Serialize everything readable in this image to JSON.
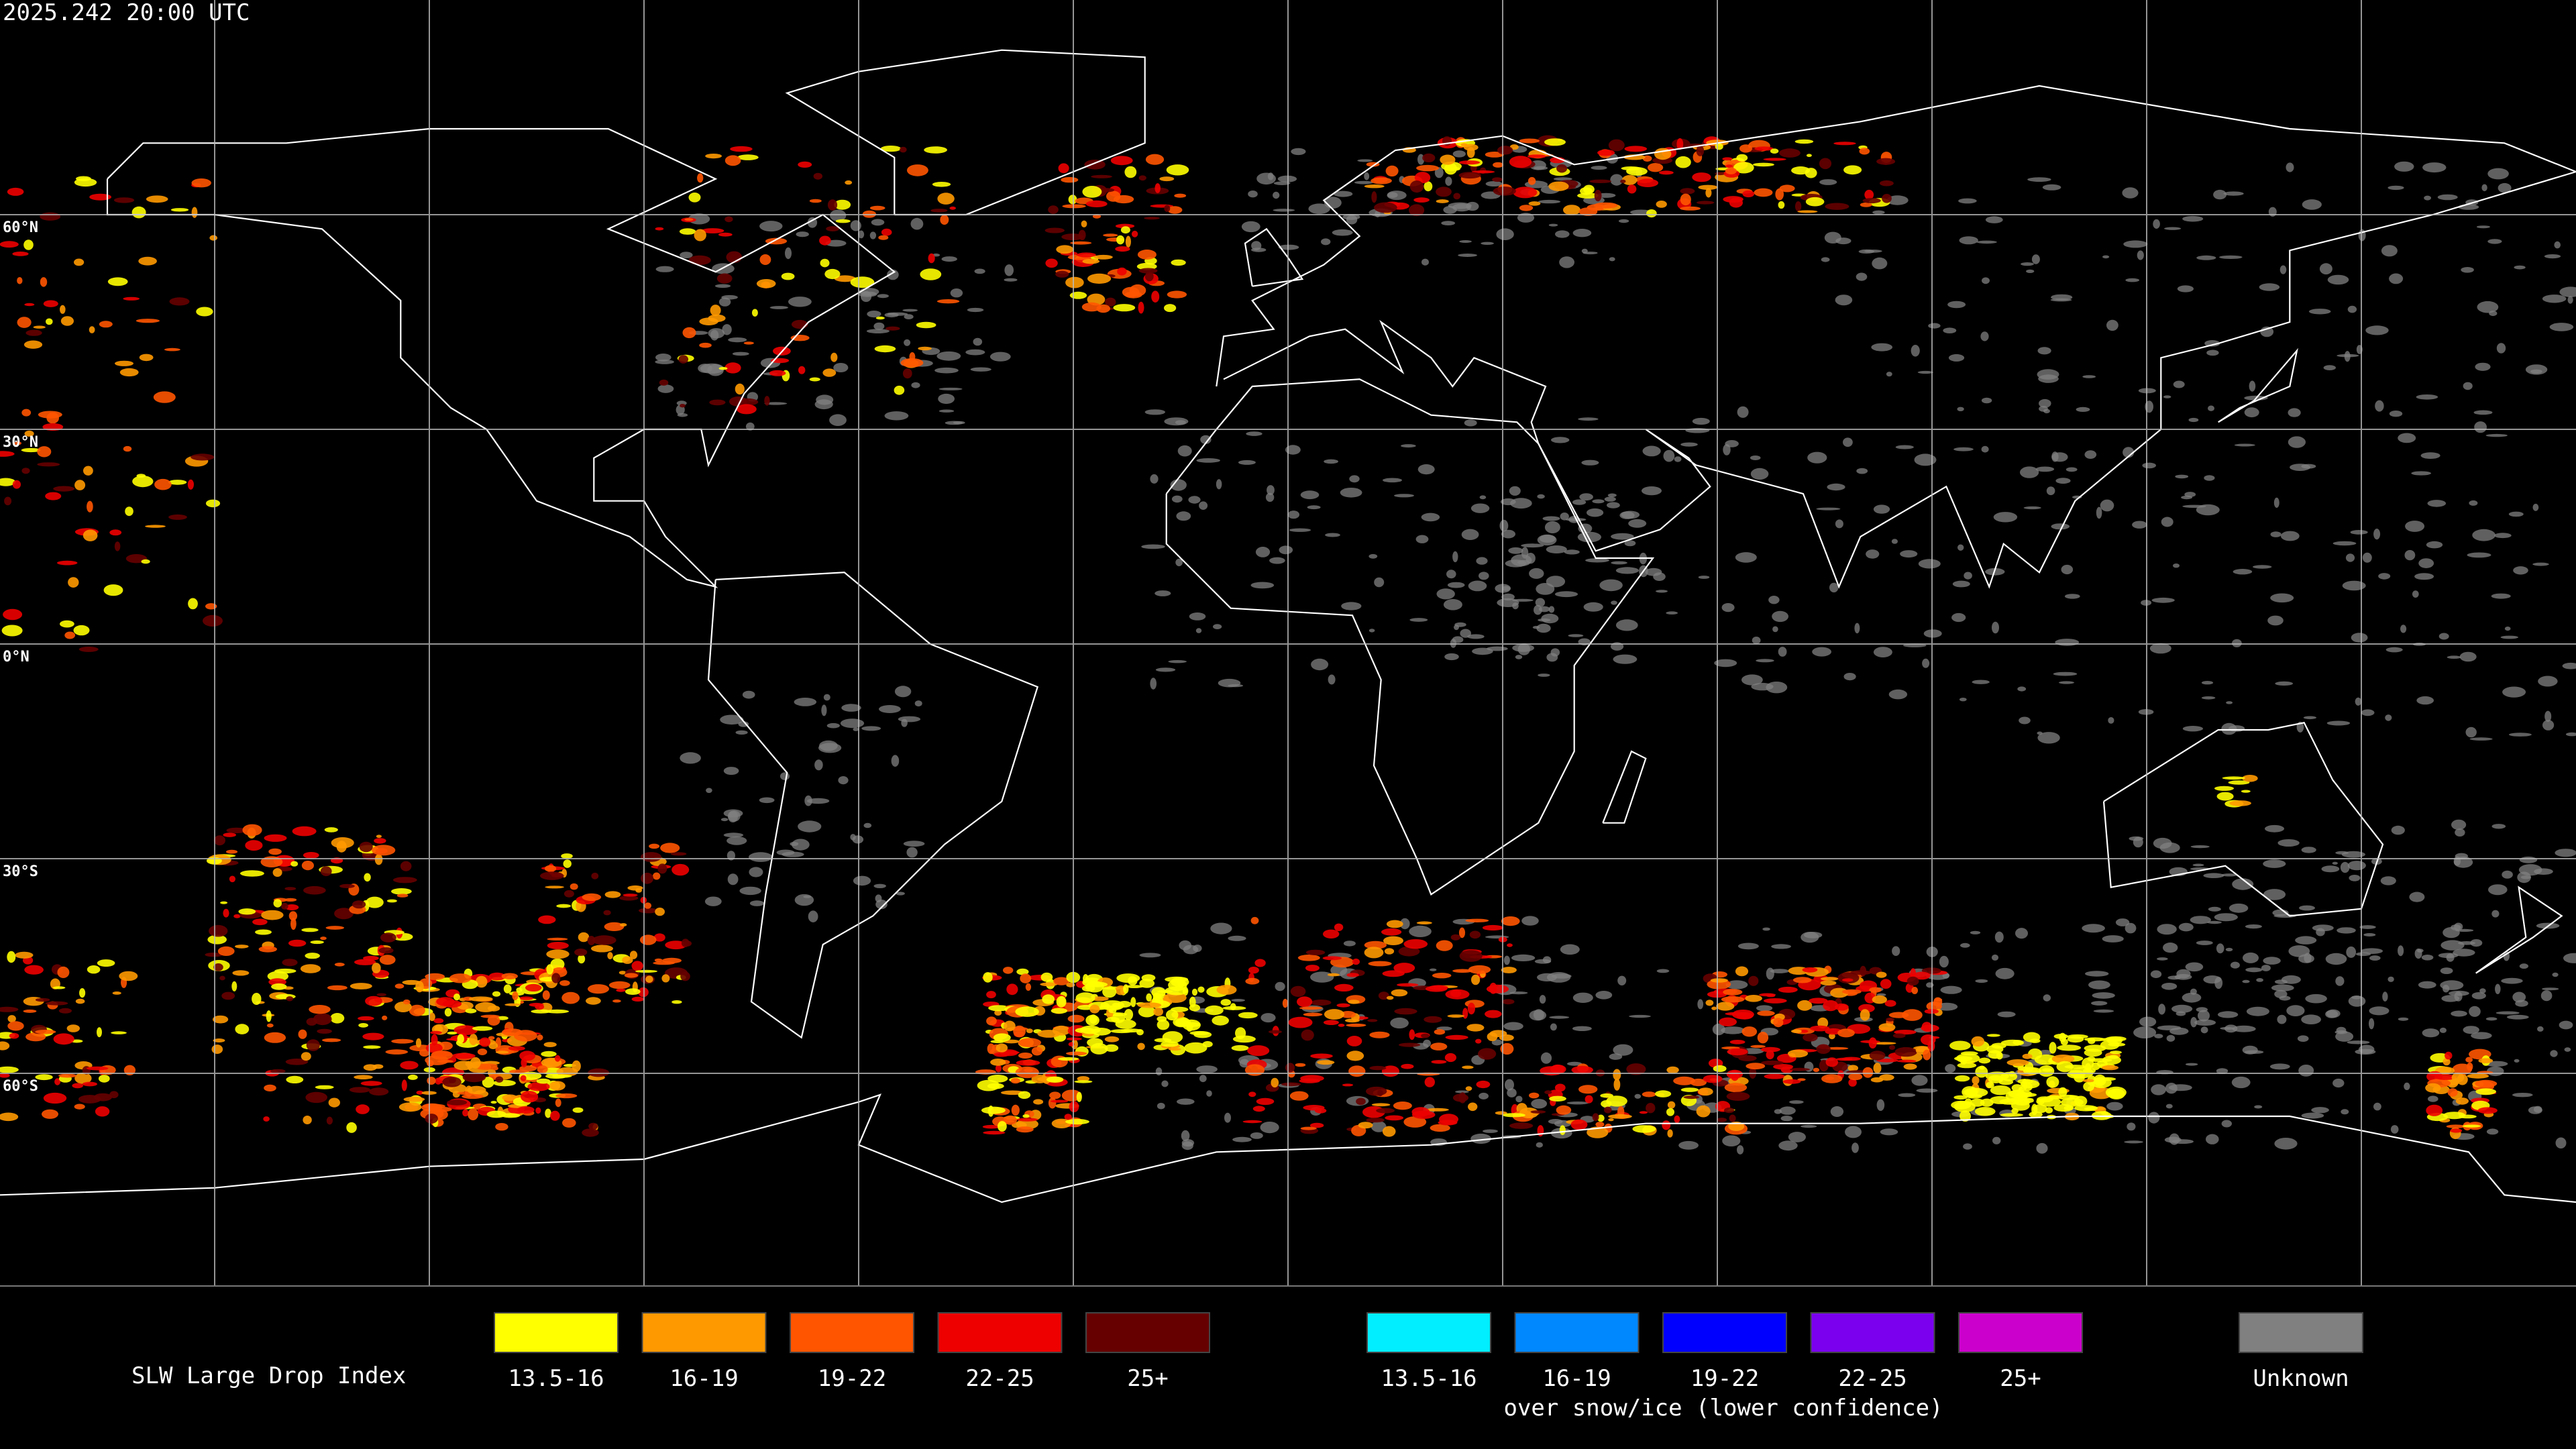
{
  "header": {
    "timestamp": "2025.242 20:00 UTC"
  },
  "map": {
    "latitude_labels": [
      "60°N",
      "30°N",
      "0°N",
      "30°S",
      "60°S"
    ]
  },
  "legend": {
    "title": "SLW Large Drop Index",
    "items": [
      {
        "label": "13.5-16",
        "color": "#ffff00"
      },
      {
        "label": "16-19",
        "color": "#ff9900"
      },
      {
        "label": "19-22",
        "color": "#ff5500"
      },
      {
        "label": "22-25",
        "color": "#ee0000"
      },
      {
        "label": "25+",
        "color": "#660000"
      }
    ],
    "snow_items": [
      {
        "label": "13.5-16",
        "color": "#00eeff"
      },
      {
        "label": "16-19",
        "color": "#0088ff"
      },
      {
        "label": "19-22",
        "color": "#0000ff"
      },
      {
        "label": "22-25",
        "color": "#7a00ee"
      },
      {
        "label": "25+",
        "color": "#cc00cc"
      }
    ],
    "snow_caption": "over snow/ice (lower confidence)",
    "unknown": {
      "label": "Unknown",
      "color": "#808080"
    }
  }
}
